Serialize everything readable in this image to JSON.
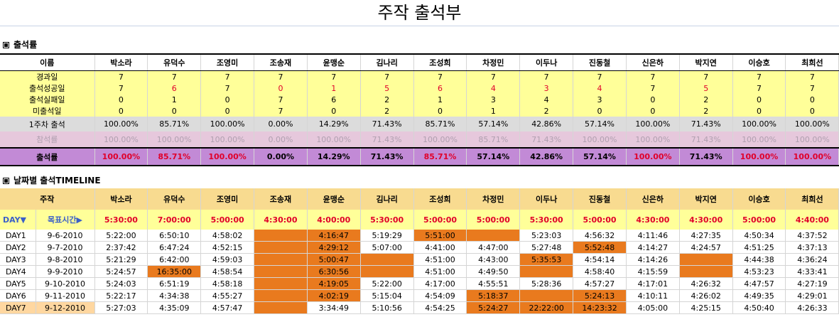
{
  "title": "주작 출석부",
  "section1": {
    "label": "출석률"
  },
  "section2": {
    "label": "날짜별 출석TIMELINE"
  },
  "name_header": "이름",
  "names": [
    "박소라",
    "유덕수",
    "조영미",
    "조송재",
    "윤맹순",
    "김나리",
    "조성희",
    "차정민",
    "이두나",
    "진동철",
    "신은하",
    "박지연",
    "이승호",
    "최희선"
  ],
  "stats": {
    "elapsed": {
      "label": "경과일",
      "values": [
        "7",
        "7",
        "7",
        "7",
        "7",
        "7",
        "7",
        "7",
        "7",
        "7",
        "7",
        "7",
        "7",
        "7"
      ]
    },
    "success": {
      "label": "출석성공일",
      "values": [
        "7",
        "6",
        "7",
        "0",
        "1",
        "5",
        "6",
        "4",
        "3",
        "4",
        "7",
        "5",
        "7",
        "7"
      ]
    },
    "fail": {
      "label": "출석실패일",
      "values": [
        "0",
        "1",
        "0",
        "7",
        "6",
        "2",
        "1",
        "3",
        "4",
        "3",
        "0",
        "2",
        "0",
        "0"
      ]
    },
    "absent": {
      "label": "미출석일",
      "values": [
        "0",
        "0",
        "0",
        "7",
        "0",
        "2",
        "0",
        "1",
        "2",
        "0",
        "0",
        "2",
        "0",
        "0"
      ]
    },
    "week1": {
      "label": "1주차 출석",
      "values": [
        "100.00%",
        "85.71%",
        "100.00%",
        "0.00%",
        "14.29%",
        "71.43%",
        "85.71%",
        "57.14%",
        "42.86%",
        "57.14%",
        "100.00%",
        "71.43%",
        "100.00%",
        "100.00%"
      ]
    },
    "participation": {
      "label": "참석률",
      "values": [
        "100.00%",
        "100.00%",
        "100.00%",
        "0.00%",
        "100.00%",
        "71.43%",
        "100.00%",
        "85.71%",
        "71.43%",
        "100.00%",
        "100.00%",
        "71.43%",
        "100.00%",
        "100.00%"
      ]
    },
    "rate": {
      "label": "출석률",
      "values": [
        "100.00%",
        "85.71%",
        "100.00%",
        "0.00%",
        "14.29%",
        "71.43%",
        "85.71%",
        "57.14%",
        "42.86%",
        "57.14%",
        "100.00%",
        "71.43%",
        "100.00%",
        "100.00%"
      ]
    }
  },
  "timeline": {
    "header": "주작",
    "day_label": "DAY▼",
    "goal_label": "목표시간▶",
    "goals": [
      "5:30:00",
      "7:00:00",
      "5:00:00",
      "4:30:00",
      "4:00:00",
      "5:30:00",
      "5:00:00",
      "5:00:00",
      "5:30:00",
      "5:00:00",
      "4:30:00",
      "4:30:00",
      "5:00:00",
      "4:40:00"
    ],
    "rows": [
      {
        "day": "DAY1",
        "date": "9-6-2010",
        "times": [
          "5:22:00",
          "6:50:10",
          "4:58:02",
          "",
          "4:16:47",
          "5:19:29",
          "5:51:00",
          "",
          "5:23:03",
          "4:56:32",
          "4:11:46",
          "4:27:35",
          "4:50:34",
          "4:37:52"
        ]
      },
      {
        "day": "DAY2",
        "date": "9-7-2010",
        "times": [
          "2:37:42",
          "6:47:24",
          "4:52:15",
          "",
          "4:29:12",
          "5:07:00",
          "4:41:00",
          "4:47:00",
          "5:27:48",
          "5:52:48",
          "4:14:27",
          "4:24:57",
          "4:51:25",
          "4:37:13"
        ]
      },
      {
        "day": "DAY3",
        "date": "9-8-2010",
        "times": [
          "5:21:29",
          "6:42:00",
          "4:59:03",
          "",
          "5:00:47",
          "",
          "4:51:00",
          "4:43:00",
          "5:35:53",
          "4:54:14",
          "4:14:26",
          "",
          "4:44:38",
          "4:36:24"
        ]
      },
      {
        "day": "DAY4",
        "date": "9-9-2010",
        "times": [
          "5:24:57",
          "16:35:00",
          "4:58:54",
          "",
          "6:30:56",
          "",
          "4:51:00",
          "4:49:50",
          "",
          "4:58:40",
          "4:15:59",
          "",
          "4:53:23",
          "4:33:41"
        ]
      },
      {
        "day": "DAY5",
        "date": "9-10-2010",
        "times": [
          "5:24:03",
          "6:51:19",
          "4:58:18",
          "",
          "4:19:05",
          "5:22:00",
          "4:17:00",
          "4:55:51",
          "5:28:36",
          "4:57:27",
          "4:17:01",
          "4:26:32",
          "4:47:57",
          "4:27:19"
        ]
      },
      {
        "day": "DAY6",
        "date": "9-11-2010",
        "times": [
          "5:22:17",
          "4:34:38",
          "4:55:27",
          "",
          "4:02:19",
          "5:15:04",
          "4:54:09",
          "5:18:37",
          "",
          "5:24:13",
          "4:10:11",
          "4:26:02",
          "4:49:35",
          "4:29:01"
        ]
      },
      {
        "day": "DAY7",
        "date": "9-12-2010",
        "times": [
          "5:27:03",
          "4:35:09",
          "4:57:47",
          "",
          "3:34:49",
          "5:10:56",
          "4:54:25",
          "5:24:27",
          "22:22:00",
          "14:23:32",
          "4:05:00",
          "4:25:15",
          "4:50:40",
          "4:26:33"
        ]
      }
    ],
    "highlight": [
      [
        0,
        0,
        0,
        1,
        1,
        0,
        1,
        1,
        0,
        0,
        0,
        0,
        0,
        0
      ],
      [
        0,
        0,
        0,
        1,
        1,
        0,
        0,
        0,
        0,
        1,
        0,
        0,
        0,
        0
      ],
      [
        0,
        0,
        0,
        1,
        1,
        1,
        0,
        0,
        1,
        0,
        0,
        1,
        0,
        0
      ],
      [
        0,
        1,
        0,
        1,
        1,
        1,
        0,
        0,
        1,
        0,
        0,
        1,
        0,
        0
      ],
      [
        0,
        0,
        0,
        1,
        1,
        0,
        0,
        0,
        0,
        0,
        0,
        0,
        0,
        0
      ],
      [
        0,
        0,
        0,
        1,
        1,
        0,
        0,
        1,
        1,
        1,
        0,
        0,
        0,
        0
      ],
      [
        0,
        0,
        0,
        1,
        0,
        0,
        0,
        1,
        1,
        1,
        0,
        0,
        0,
        0
      ]
    ]
  },
  "colors": {
    "yellow": "#ffff99",
    "grey": "#dcdcdc",
    "pink": "#e6c8dc",
    "purple": "#c28ad6",
    "header_orange": "#f8db90",
    "miss_orange": "#e97a1e",
    "red_text": "#e0002a",
    "blue_text": "#3a5fc8"
  }
}
